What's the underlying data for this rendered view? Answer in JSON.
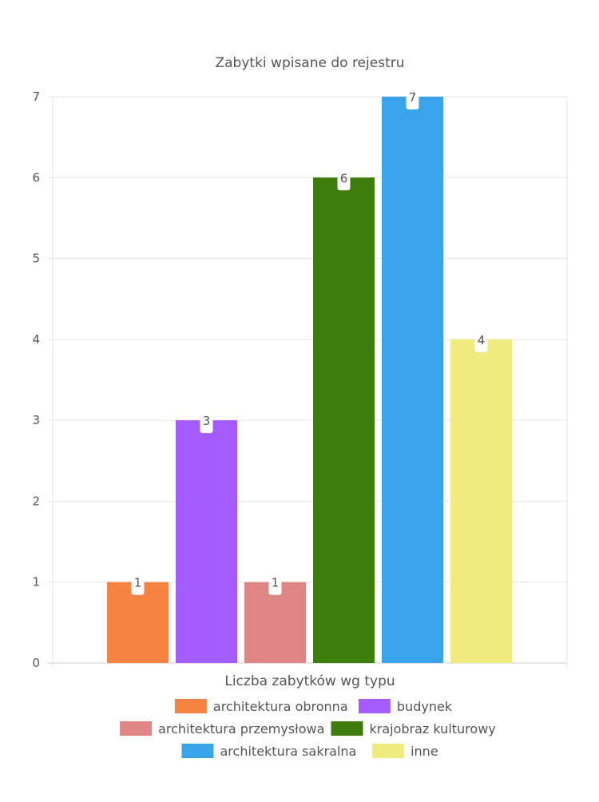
{
  "chart_data": {
    "type": "bar",
    "title": "Zabytki wpisane do rejestru",
    "xlabel": "Liczba zabytków wg typu",
    "ylabel": "",
    "ylim": [
      0,
      7
    ],
    "y_ticks": [
      0,
      1,
      2,
      3,
      4,
      5,
      6,
      7
    ],
    "grid": true,
    "legend_position": "bottom",
    "series": [
      {
        "name": "architektura obronna",
        "values": [
          1
        ],
        "color": "#f58442"
      },
      {
        "name": "budynek",
        "values": [
          3
        ],
        "color": "#a35cff"
      },
      {
        "name": "architektura przemysłowa",
        "values": [
          1
        ],
        "color": "#e08585"
      },
      {
        "name": "krajobraz kulturowy",
        "values": [
          6
        ],
        "color": "#3d7d0c"
      },
      {
        "name": "architektura sakralna",
        "values": [
          7
        ],
        "color": "#39a3eb"
      },
      {
        "name": "inne",
        "values": [
          4
        ],
        "color": "#f0eb7f"
      }
    ]
  }
}
